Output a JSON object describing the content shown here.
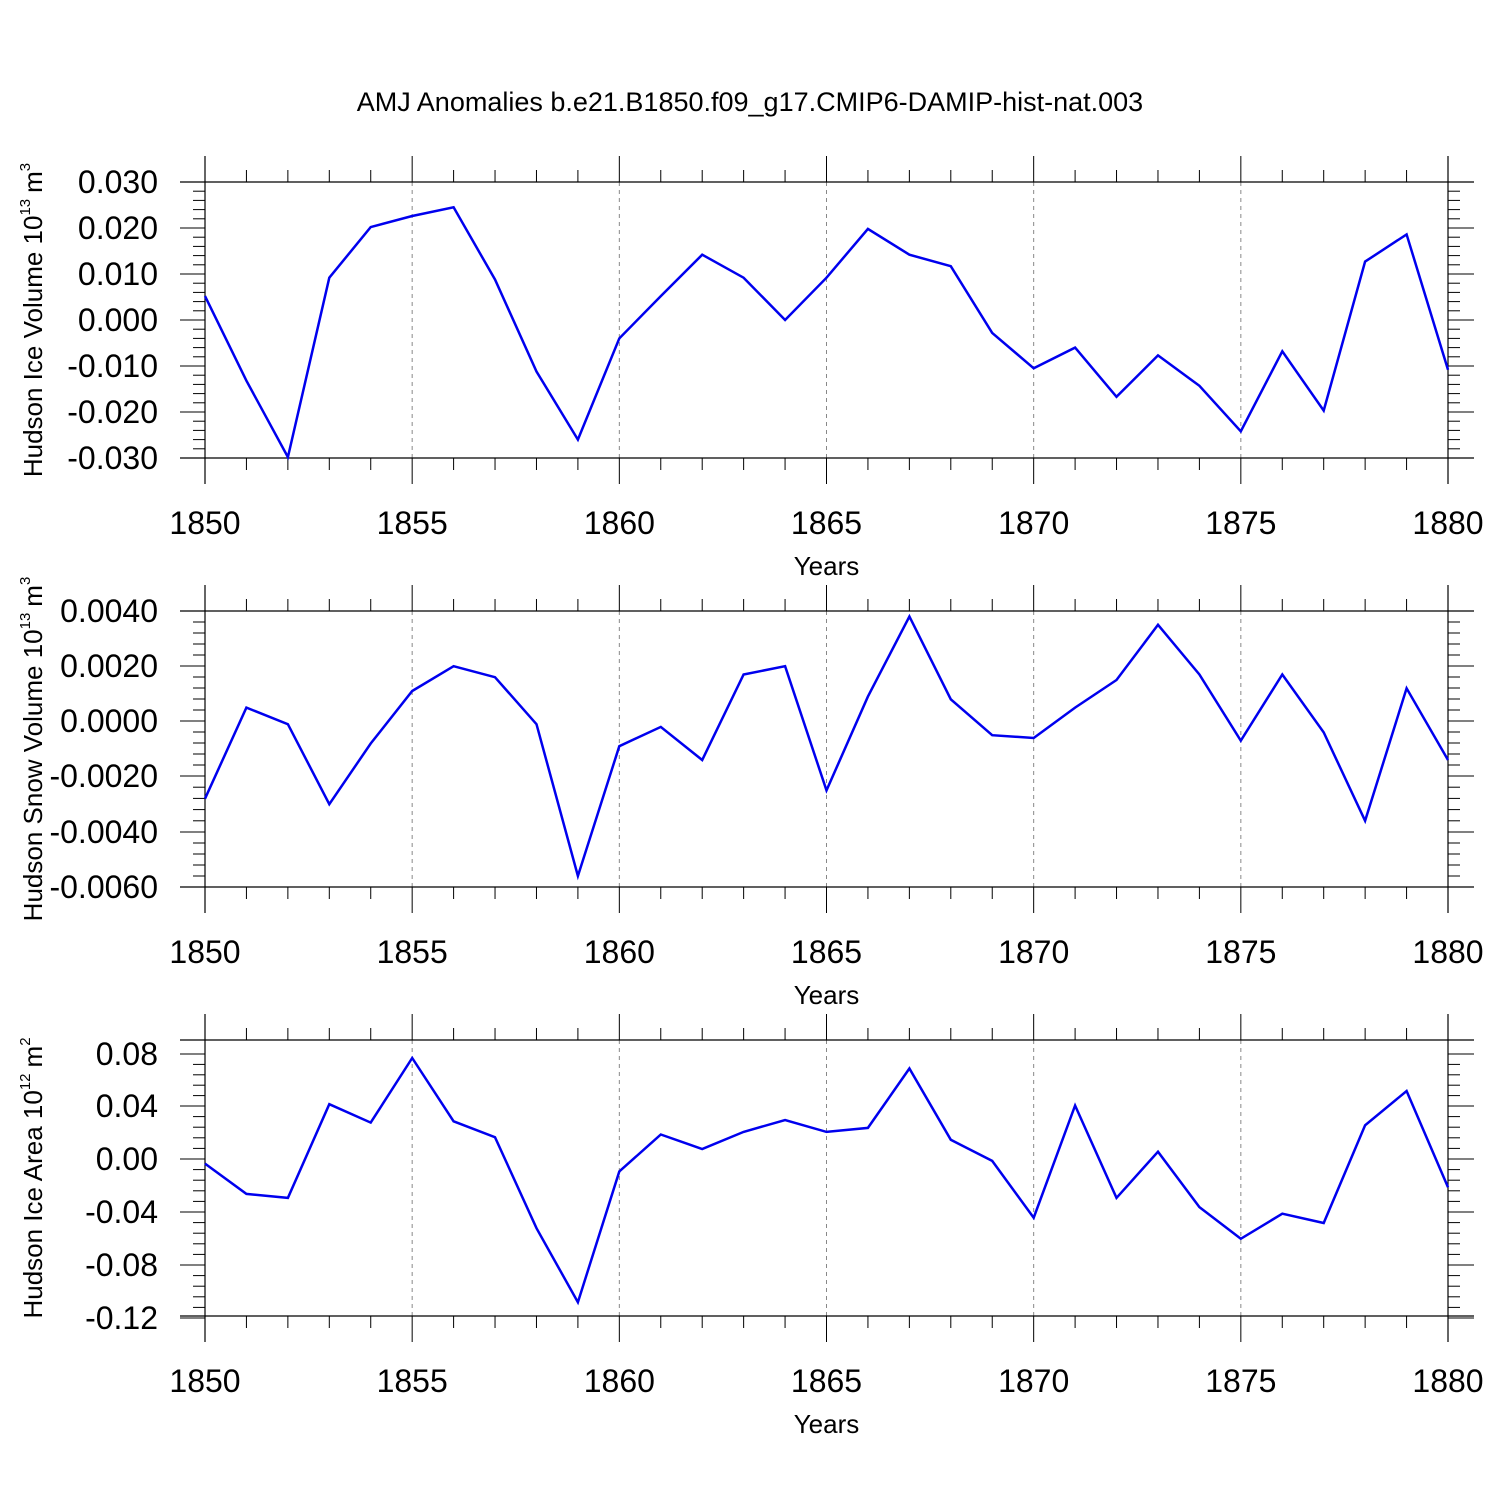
{
  "title": "AMJ Anomalies b.e21.B1850.f09_g17.CMIP6-DAMIP-hist-nat.003",
  "colors": {
    "line": "#0000ee",
    "axis": "#000000",
    "grid": "#888888"
  },
  "chart_data": [
    {
      "type": "line",
      "name": "ice-volume",
      "ylabel_main": "Hudson Ice Volume 10",
      "ylabel_exp": "13",
      "ylabel_unit": "m",
      "ylabel_unit_exp": "3",
      "xlabel": "Years",
      "xlim": [
        1850,
        1880
      ],
      "ylim": [
        -0.03,
        0.03
      ],
      "x_ticks": [
        "1850",
        "1855",
        "1860",
        "1865",
        "1870",
        "1875",
        "1880"
      ],
      "y_ticks": [
        "0.030",
        "0.020",
        "0.010",
        "0.000",
        "-0.010",
        "-0.020",
        "-0.030"
      ],
      "y_tick_values": [
        0.03,
        0.02,
        0.01,
        0.0,
        -0.01,
        -0.02,
        -0.03
      ],
      "grid": "vertical dashed at major x ticks",
      "x": [
        1850,
        1851,
        1852,
        1853,
        1854,
        1855,
        1856,
        1857,
        1858,
        1859,
        1860,
        1861,
        1862,
        1863,
        1864,
        1865,
        1866,
        1867,
        1868,
        1869,
        1870,
        1871,
        1872,
        1873,
        1874,
        1875,
        1876,
        1877,
        1878,
        1879,
        1880
      ],
      "values": [
        0.0052,
        -0.0132,
        -0.0298,
        0.0092,
        0.0202,
        0.0226,
        0.0245,
        0.0088,
        -0.0112,
        -0.026,
        -0.004,
        0.0052,
        0.0142,
        0.0092,
        0.0,
        0.0092,
        0.0198,
        0.0142,
        0.0117,
        -0.0028,
        -0.0105,
        -0.006,
        -0.0167,
        -0.0077,
        -0.0143,
        -0.0242,
        -0.0068,
        -0.0197,
        0.0127,
        0.0186,
        -0.0108
      ]
    },
    {
      "type": "line",
      "name": "snow-volume",
      "ylabel_main": "Hudson Snow Volume 10",
      "ylabel_exp": "13",
      "ylabel_unit": "m",
      "ylabel_unit_exp": "3",
      "xlabel": "Years",
      "xlim": [
        1850,
        1880
      ],
      "ylim": [
        -0.006,
        0.004
      ],
      "x_ticks": [
        "1850",
        "1855",
        "1860",
        "1865",
        "1870",
        "1875",
        "1880"
      ],
      "y_ticks": [
        "0.0040",
        "0.0020",
        "0.0000",
        "-0.0020",
        "-0.0040",
        "-0.0060"
      ],
      "y_tick_values": [
        0.004,
        0.002,
        0.0,
        -0.002,
        -0.004,
        -0.006
      ],
      "grid": "vertical dashed at major x ticks",
      "x": [
        1850,
        1851,
        1852,
        1853,
        1854,
        1855,
        1856,
        1857,
        1858,
        1859,
        1860,
        1861,
        1862,
        1863,
        1864,
        1865,
        1866,
        1867,
        1868,
        1869,
        1870,
        1871,
        1872,
        1873,
        1874,
        1875,
        1876,
        1877,
        1878,
        1879,
        1880
      ],
      "values": [
        -0.0028,
        0.0005,
        -0.0001,
        -0.003,
        -0.0008,
        0.0011,
        0.002,
        0.0016,
        -0.0001,
        -0.0056,
        -0.0009,
        -0.0002,
        -0.0014,
        0.0017,
        0.002,
        -0.0025,
        0.0009,
        0.0038,
        0.0008,
        -0.0005,
        -0.0006,
        0.0005,
        0.0015,
        0.0035,
        0.0017,
        -0.0007,
        0.0017,
        -0.0004,
        -0.0036,
        0.0012,
        -0.0014
      ]
    },
    {
      "type": "line",
      "name": "ice-area",
      "ylabel_main": "Hudson Ice Area 10",
      "ylabel_exp": "12",
      "ylabel_unit": "m",
      "ylabel_unit_exp": "2",
      "xlabel": "Years",
      "xlim": [
        1850,
        1880
      ],
      "ylim": [
        -0.12,
        0.09
      ],
      "x_ticks": [
        "1850",
        "1855",
        "1860",
        "1865",
        "1870",
        "1875",
        "1880"
      ],
      "y_ticks": [
        "0.08",
        "0.04",
        "0.00",
        "-0.04",
        "-0.08",
        "-0.12"
      ],
      "y_tick_values": [
        0.08,
        0.04,
        0.0,
        -0.04,
        -0.08,
        -0.12
      ],
      "grid": "vertical dashed at major x ticks",
      "x": [
        1850,
        1851,
        1852,
        1853,
        1854,
        1855,
        1856,
        1857,
        1858,
        1859,
        1860,
        1861,
        1862,
        1863,
        1864,
        1865,
        1866,
        1867,
        1868,
        1869,
        1870,
        1871,
        1872,
        1873,
        1874,
        1875,
        1876,
        1877,
        1878,
        1879,
        1880
      ],
      "values": [
        -0.003,
        -0.026,
        -0.029,
        0.042,
        0.028,
        0.077,
        0.029,
        0.017,
        -0.052,
        -0.108,
        -0.009,
        0.019,
        0.008,
        0.021,
        0.03,
        0.021,
        0.024,
        0.069,
        0.015,
        -0.001,
        -0.044,
        0.041,
        -0.029,
        0.006,
        -0.036,
        -0.06,
        -0.041,
        -0.048,
        0.026,
        0.052,
        -0.021
      ]
    }
  ]
}
